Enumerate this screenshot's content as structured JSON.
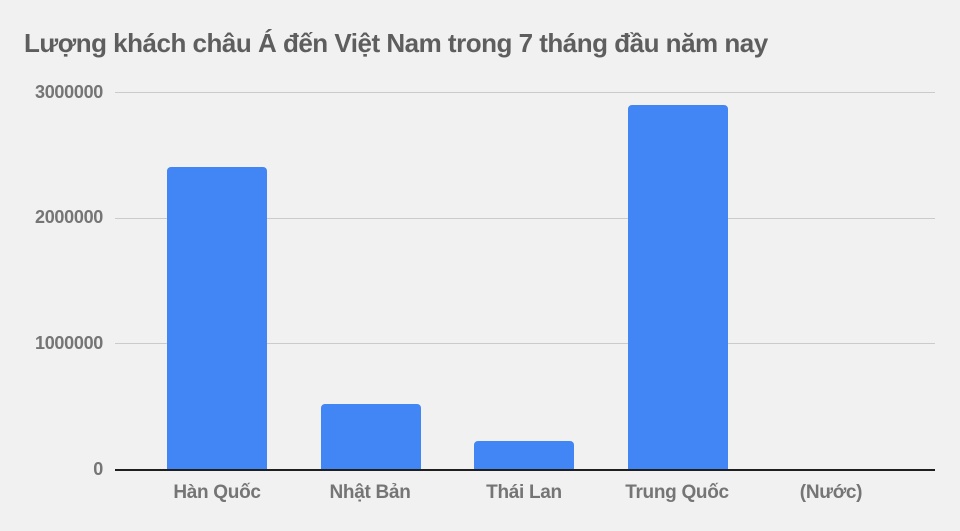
{
  "page": {
    "background_color": "#f1f1f1"
  },
  "chart_data": {
    "type": "bar",
    "title": "Lượng khách châu Á đến Việt Nam trong 7 tháng đầu năm nay",
    "categories": [
      "Hàn Quốc",
      "Nhật Bản",
      "Thái Lan",
      "Trung Quốc"
    ],
    "values": [
      2400000,
      520000,
      220000,
      2900000
    ],
    "x_axis_unit_label": "(Nước)",
    "xlabel": "",
    "ylabel": "",
    "ylim": [
      0,
      3000000
    ],
    "yticks": [
      0,
      1000000,
      2000000,
      3000000
    ],
    "ytick_labels": [
      "0",
      "1000000",
      "2000000",
      "3000000"
    ],
    "grid": true,
    "legend": "none",
    "bar_color": "#4285f4",
    "gridline_color": "#cbcbcb",
    "axis_line_color": "#1f1f1f",
    "title_color": "#5e5e5e",
    "axis_label_color": "#757575"
  }
}
